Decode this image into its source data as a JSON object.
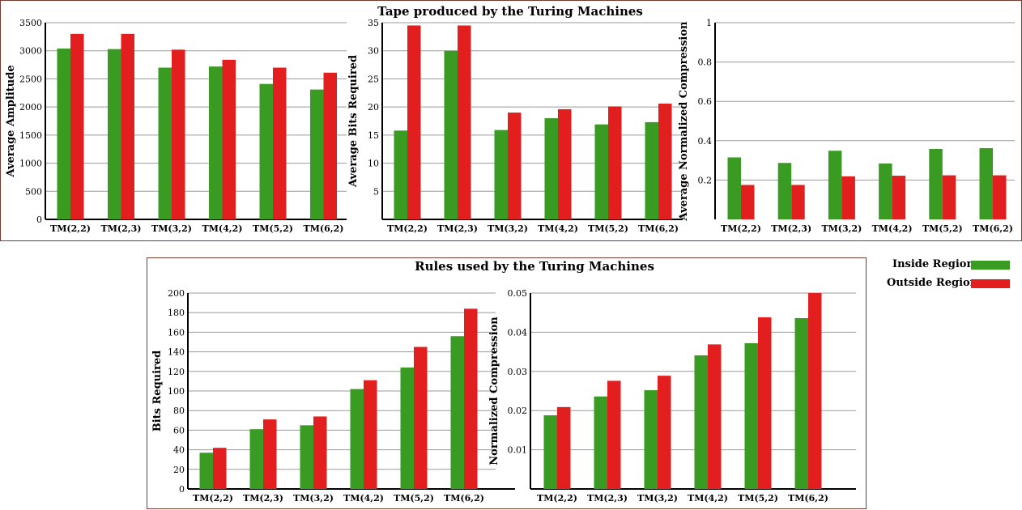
{
  "figure": {
    "top_title": "Tape produced by the Turing Machines",
    "bottom_title": "Rules used by the Turing Machines"
  },
  "legend": {
    "items": [
      {
        "name": "Inside Regions",
        "color": "#3a9b22"
      },
      {
        "name": "Outside Regions",
        "color": "#e31e1e"
      }
    ]
  },
  "chart_data": [
    {
      "type": "bar",
      "ylabel": "Average Amplitude",
      "xlabel": "",
      "categories": [
        "TM(2,2)",
        "TM(2,3)",
        "TM(3,2)",
        "TM(4,2)",
        "TM(5,2)",
        "TM(6,2)"
      ],
      "ylim": [
        0,
        3500
      ],
      "yticks": [
        0,
        500,
        1000,
        1500,
        2000,
        2500,
        3000,
        3500
      ],
      "grid": true,
      "series": [
        {
          "name": "Inside Regions",
          "values": [
            3040,
            3030,
            2700,
            2720,
            2410,
            2310
          ]
        },
        {
          "name": "Outside Regions",
          "values": [
            3300,
            3300,
            3020,
            2840,
            2700,
            2610
          ]
        }
      ]
    },
    {
      "type": "bar",
      "ylabel": "Average Bits Required",
      "xlabel": "",
      "categories": [
        "TM(2,2)",
        "TM(2,3)",
        "TM(3,2)",
        "TM(4,2)",
        "TM(5,2)",
        "TM(6,2)"
      ],
      "ylim": [
        0,
        35
      ],
      "yticks": [
        5,
        10,
        15,
        20,
        25,
        30,
        35
      ],
      "grid": true,
      "series": [
        {
          "name": "Inside Regions",
          "values": [
            15.8,
            30.0,
            15.9,
            18.0,
            16.9,
            17.3
          ]
        },
        {
          "name": "Outside Regions",
          "values": [
            34.5,
            34.5,
            19.0,
            19.6,
            20.1,
            20.6
          ]
        }
      ]
    },
    {
      "type": "bar",
      "ylabel": "Average  Normalized Compression",
      "xlabel": "",
      "categories": [
        "TM(2,2)",
        "TM(2,3)",
        "TM(3,2)",
        "TM(4,2)",
        "TM(5,2)",
        "TM(6,2)"
      ],
      "ylim": [
        0,
        1
      ],
      "yticks": [
        0.2,
        0.4,
        0.6,
        0.8,
        1
      ],
      "grid": true,
      "series": [
        {
          "name": "Inside Regions",
          "values": [
            0.315,
            0.287,
            0.349,
            0.284,
            0.358,
            0.362
          ]
        },
        {
          "name": "Outside Regions",
          "values": [
            0.175,
            0.175,
            0.219,
            0.222,
            0.224,
            0.224
          ]
        }
      ]
    },
    {
      "type": "bar",
      "ylabel": "Bits Required",
      "xlabel": "",
      "categories": [
        "TM(2,2)",
        "TM(2,3)",
        "TM(3,2)",
        "TM(4,2)",
        "TM(5,2)",
        "TM(6,2)"
      ],
      "ylim": [
        0,
        200
      ],
      "yticks": [
        0,
        20,
        40,
        60,
        80,
        100,
        120,
        140,
        160,
        180,
        200
      ],
      "grid": true,
      "series": [
        {
          "name": "Inside Regions",
          "values": [
            37,
            61,
            65,
            102,
            124,
            156
          ]
        },
        {
          "name": "Outside Regions",
          "values": [
            42,
            71,
            74,
            111,
            145,
            184
          ]
        }
      ]
    },
    {
      "type": "bar",
      "ylabel": "Normalized Compression",
      "xlabel": "",
      "categories": [
        "TM(2,2)",
        "TM(2,3)",
        "TM(3,2)",
        "TM(4,2)",
        "TM(5,2)",
        "TM(6,2)"
      ],
      "ylim": [
        0,
        0.05
      ],
      "yticks": [
        0.01,
        0.02,
        0.03,
        0.04,
        0.05
      ],
      "grid": true,
      "series": [
        {
          "name": "Inside Regions",
          "values": [
            0.0188,
            0.0236,
            0.0252,
            0.0341,
            0.0372,
            0.0436
          ]
        },
        {
          "name": "Outside Regions",
          "values": [
            0.0209,
            0.0276,
            0.0289,
            0.0369,
            0.0438,
            0.05
          ]
        }
      ]
    }
  ]
}
